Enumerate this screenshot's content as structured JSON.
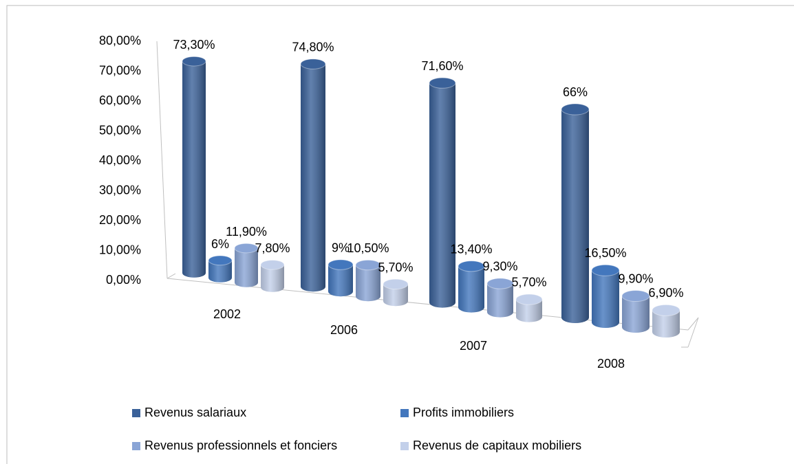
{
  "chart_data": {
    "type": "bar3d",
    "categories": [
      "2002",
      "2006",
      "2007",
      "2008"
    ],
    "series": [
      {
        "name": "Revenus salariaux",
        "color": "#3a6199",
        "values": [
          73.3,
          74.8,
          71.6,
          66
        ],
        "value_labels": [
          "73,30%",
          "74,80%",
          "71,60%",
          "66%"
        ]
      },
      {
        "name": "Profits immobiliers",
        "color": "#4377bd",
        "values": [
          6,
          9,
          13.4,
          16.5
        ],
        "value_labels": [
          "6%",
          "9%",
          "13,40%",
          "16,50%"
        ]
      },
      {
        "name": "Revenus professionnels et fonciers",
        "color": "#8aa5d6",
        "values": [
          11.9,
          10.5,
          9.3,
          9.9
        ],
        "value_labels": [
          "11,90%",
          "10,50%",
          "9,30%",
          "9,90%"
        ]
      },
      {
        "name": "Revenus de capitaux mobiliers",
        "color": "#c3d0ea",
        "values": [
          7.8,
          5.7,
          5.7,
          6.9
        ],
        "value_labels": [
          "7,80%",
          "5,70%",
          "5,70%",
          "6,90%"
        ]
      }
    ],
    "ylim": [
      0,
      80
    ],
    "yticks": [
      {
        "value": 0,
        "label": "0,00%"
      },
      {
        "value": 10,
        "label": "10,00%"
      },
      {
        "value": 20,
        "label": "20,00%"
      },
      {
        "value": 30,
        "label": "30,00%"
      },
      {
        "value": 40,
        "label": "40,00%"
      },
      {
        "value": 50,
        "label": "50,00%"
      },
      {
        "value": 60,
        "label": "60,00%"
      },
      {
        "value": 70,
        "label": "70,00%"
      },
      {
        "value": 80,
        "label": "80,00%"
      }
    ],
    "grid": false,
    "legend": "bottom"
  }
}
